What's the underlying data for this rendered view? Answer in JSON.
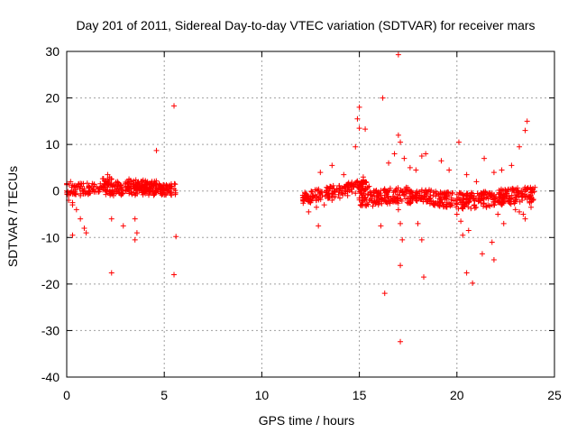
{
  "chart_data": {
    "type": "scatter",
    "title": "Day 201 of 2011, Sidereal Day-to-day VTEC variation (SDTVAR) for receiver mars",
    "xlabel": "GPS time / hours",
    "ylabel": "SDTVAR / TECUs",
    "xlim": [
      0,
      25
    ],
    "ylim": [
      -40,
      30
    ],
    "xticks": [
      0,
      5,
      10,
      15,
      20,
      25
    ],
    "yticks": [
      -40,
      -30,
      -20,
      -10,
      0,
      10,
      20,
      30
    ],
    "xtick_labels": [
      "0",
      "5",
      "10",
      "15",
      "20",
      "25"
    ],
    "ytick_labels": [
      "-40",
      "-30",
      "-20",
      "-10",
      "0",
      "10",
      "20",
      "30"
    ],
    "grid": true,
    "marker": "+",
    "marker_color": "#ff0000",
    "series": [
      {
        "name": "SDTVAR",
        "x": [
          0.1,
          0.3,
          0.5,
          0.7,
          0.9,
          1.0,
          0.2,
          0.4,
          0.6,
          0.8,
          0.0,
          0.1,
          0.2,
          0.3,
          0.5,
          0.7,
          0.9,
          1.1,
          1.4,
          1.7,
          2.0,
          2.1,
          2.3,
          2.5,
          2.8,
          3.0,
          3.3,
          3.6,
          3.9,
          4.2,
          4.5,
          4.8,
          5.0,
          5.3,
          5.5,
          0.4,
          0.8,
          1.2,
          1.6,
          2.0,
          2.4,
          2.8,
          3.2,
          3.6,
          4.0,
          4.4,
          4.8,
          5.2,
          2.2,
          2.6,
          3.0,
          3.4,
          3.8,
          2.3,
          2.9,
          3.5,
          3.6,
          3.5,
          4.6,
          5.5,
          5.6,
          5.5,
          0.3,
          2.3,
          12.2,
          12.5,
          12.8,
          13.1,
          13.4,
          13.7,
          14.0,
          14.3,
          14.6,
          14.9,
          15.2,
          15.5,
          15.8,
          16.1,
          16.4,
          16.7,
          17.0,
          17.3,
          17.6,
          17.9,
          18.2,
          18.5,
          18.8,
          19.1,
          19.4,
          19.7,
          20.0,
          20.3,
          20.6,
          20.9,
          21.2,
          21.5,
          21.8,
          22.1,
          22.4,
          22.7,
          23.0,
          23.3,
          23.6,
          23.9,
          12.4,
          12.8,
          13.2,
          13.6,
          14.0,
          14.4,
          14.8,
          15.0,
          15.2,
          12.9,
          13.0,
          13.6,
          14.2,
          14.8,
          14.9,
          15.0,
          15.3,
          15.0,
          16.2,
          16.5,
          16.8,
          17.0,
          17.1,
          17.3,
          17.6,
          17.9,
          18.2,
          18.4,
          19.2,
          19.6,
          20.1,
          20.5,
          21.0,
          21.4,
          21.9,
          22.3,
          22.8,
          23.2,
          23.5,
          23.6,
          17.0,
          17.0,
          17.2,
          17.1,
          16.3,
          16.1,
          17.1,
          17.1,
          18.2,
          18.3,
          18.0,
          20.0,
          20.3,
          20.5,
          20.6,
          20.8,
          21.3,
          21.9,
          21.8,
          22.4,
          22.1,
          20.2,
          23.2,
          23.4,
          23.5,
          23.0,
          23.8
        ],
        "y": [
          -1.0,
          -2.5,
          -4.0,
          -6.0,
          -8.0,
          -9.0,
          -0.5,
          1.0,
          1.5,
          0.5,
          0.0,
          -2.0,
          2.0,
          -3.0,
          1.0,
          -1.0,
          0.5,
          -0.5,
          0.0,
          0.5,
          2.0,
          3.5,
          2.5,
          1.0,
          0.5,
          1.5,
          2.0,
          0.5,
          1.0,
          0.0,
          -0.5,
          0.5,
          0.0,
          -0.5,
          0.5,
          -0.5,
          0.0,
          -0.5,
          0.5,
          0.0,
          -1.0,
          -0.5,
          0.0,
          0.5,
          0.5,
          0.0,
          0.5,
          0.0,
          3.0,
          2.0,
          1.5,
          1.0,
          2.0,
          -6.0,
          -7.5,
          -6.0,
          -9.0,
          -10.5,
          8.7,
          18.3,
          -9.8,
          -18.0,
          -9.5,
          -17.6,
          -1.5,
          -2.5,
          -2.0,
          -1.0,
          -0.5,
          0.5,
          0.0,
          1.0,
          1.5,
          2.0,
          3.0,
          1.0,
          0.0,
          -1.0,
          -0.5,
          -2.0,
          -1.5,
          -1.0,
          -2.5,
          -2.0,
          -1.0,
          -2.0,
          -3.0,
          -2.5,
          -1.5,
          -3.0,
          -2.0,
          -3.5,
          -2.5,
          -3.0,
          -2.0,
          -1.5,
          -3.0,
          -2.0,
          -1.0,
          -1.5,
          -2.0,
          -0.5,
          -1.0,
          -2.0,
          -4.5,
          -3.5,
          -3.0,
          -2.0,
          -1.5,
          -1.0,
          -0.5,
          -1.5,
          -2.0,
          -7.5,
          4.0,
          5.5,
          3.5,
          9.5,
          15.5,
          13.5,
          13.3,
          18.0,
          20.0,
          6.0,
          8.0,
          12.0,
          10.5,
          7.0,
          5.0,
          4.5,
          7.5,
          8.0,
          6.5,
          4.5,
          10.5,
          3.5,
          2.0,
          7.0,
          4.0,
          4.5,
          5.5,
          9.5,
          13.0,
          15.0,
          29.3,
          -4.0,
          -10.5,
          -7.0,
          -22.0,
          -7.5,
          -32.4,
          -16.0,
          -10.5,
          -18.5,
          -7.0,
          -5.0,
          -9.5,
          -17.6,
          -8.5,
          -19.8,
          -13.5,
          -14.8,
          -11.0,
          -7.0,
          -5.0,
          -6.5,
          -4.5,
          -5.0,
          -6.0,
          -4.0,
          -3.5
        ]
      }
    ]
  }
}
